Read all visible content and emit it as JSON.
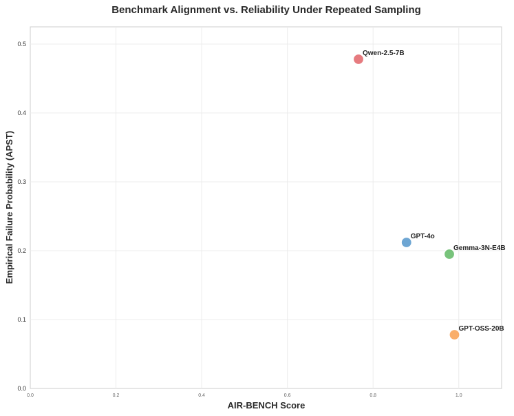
{
  "chart_data": {
    "type": "scatter",
    "title": "Benchmark Alignment vs. Reliability Under Repeated Sampling",
    "xlabel": "AIR-BENCH Score",
    "ylabel": "Empirical Failure Probability (APST)",
    "xlim": [
      0.0,
      1.1
    ],
    "ylim": [
      0.0,
      0.5
    ],
    "xticks": [
      "0.0",
      "0.2",
      "0.4",
      "0.6",
      "0.8",
      "1.0"
    ],
    "yticks": [
      "0.0",
      "0.1",
      "0.2",
      "0.3",
      "0.4",
      "0.5"
    ],
    "grid": true,
    "points": [
      {
        "label": "Qwen-2.5-7B",
        "x": 0.766,
        "y": 0.478,
        "color": "#e05a5f"
      },
      {
        "label": "GPT-4o",
        "x": 0.878,
        "y": 0.212,
        "color": "#4a90c8"
      },
      {
        "label": "Gemma-3N-E4B",
        "x": 0.978,
        "y": 0.195,
        "color": "#56b45a"
      },
      {
        "label": "GPT-OSS-20B",
        "x": 0.99,
        "y": 0.078,
        "color": "#f79a45"
      }
    ]
  }
}
